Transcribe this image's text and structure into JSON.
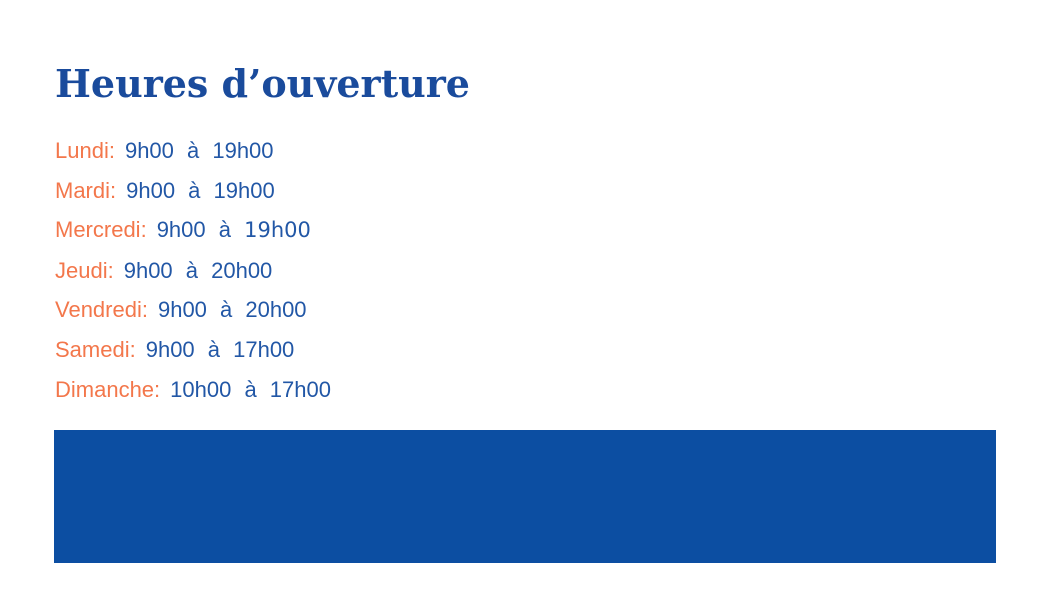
{
  "page": {
    "title": "Heures d’ouverture"
  },
  "colors": {
    "page_bg": "#ffffff",
    "title_blue": "#1a4b9c",
    "day_orange": "#f3774b",
    "hours_blue": "#2257a6",
    "banner_blue": "#0c4ea2"
  },
  "schedule": {
    "rows": [
      {
        "day": "Lundi:",
        "hours": [
          {
            "text": "9h00 à 19h00",
            "style": "default"
          }
        ]
      },
      {
        "day": "Mardi:",
        "hours": [
          {
            "text": "9h00 à 19h00",
            "style": "default"
          }
        ]
      },
      {
        "day": "Mercredi:",
        "hours": [
          {
            "text": "9h00 à ",
            "style": "default"
          },
          {
            "text": "19h00",
            "style": "round"
          }
        ]
      },
      {
        "day": "Jeudi:",
        "hours": [
          {
            "text": "9h00 à 20h00",
            "style": "default"
          }
        ]
      },
      {
        "day": "Vendredi:",
        "hours": [
          {
            "text": "9h00 à 20h00",
            "style": "default"
          }
        ]
      },
      {
        "day": "Samedi:",
        "hours": [
          {
            "text": "9h00 à 17h00",
            "style": "default"
          }
        ]
      },
      {
        "day": "Dimanche:",
        "hours": [
          {
            "text": "10h00 à 17h00",
            "style": "default"
          }
        ]
      }
    ]
  }
}
